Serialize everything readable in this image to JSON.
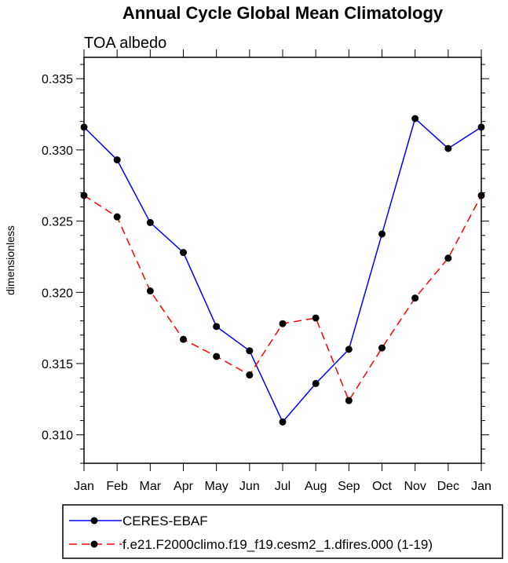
{
  "chart_data": {
    "type": "line",
    "title": "Annual Cycle Global Mean Climatology",
    "subtitle": "TOA albedo",
    "ylabel": "dimensionless",
    "xlabel": "",
    "categories": [
      "Jan",
      "Feb",
      "Mar",
      "Apr",
      "May",
      "Jun",
      "Jul",
      "Aug",
      "Sep",
      "Oct",
      "Nov",
      "Dec",
      "Jan"
    ],
    "ylim": [
      0.308,
      0.3365
    ],
    "yticks": [
      0.31,
      0.315,
      0.32,
      0.325,
      0.33,
      0.335
    ],
    "ytick_labels": [
      "0.310",
      "0.315",
      "0.320",
      "0.325",
      "0.330",
      "0.335"
    ],
    "grid": false,
    "legend_position": "bottom",
    "series": [
      {
        "name": "CERES-EBAF",
        "color": "#0000ff",
        "dash": "solid",
        "marker": "circle",
        "values": [
          0.3316,
          0.3293,
          0.3249,
          0.3228,
          0.3176,
          0.3159,
          0.3109,
          0.3136,
          0.316,
          0.3241,
          0.3322,
          0.3301,
          0.3316
        ]
      },
      {
        "name": "f.e21.F2000climo.f19_f19.cesm2_1.dfires.000 (1-19)",
        "color": "#ff0000",
        "dash": "dashed",
        "marker": "circle",
        "values": [
          0.3268,
          0.3253,
          0.3201,
          0.3167,
          0.3155,
          0.3142,
          0.3178,
          0.3182,
          0.3124,
          0.3161,
          0.3196,
          0.3224,
          0.3268
        ]
      }
    ]
  }
}
